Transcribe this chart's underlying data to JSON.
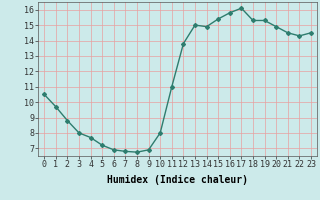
{
  "x": [
    0,
    1,
    2,
    3,
    4,
    5,
    6,
    7,
    8,
    9,
    10,
    11,
    12,
    13,
    14,
    15,
    16,
    17,
    18,
    19,
    20,
    21,
    22,
    23
  ],
  "y": [
    10.5,
    9.7,
    8.8,
    8.0,
    7.7,
    7.2,
    6.9,
    6.8,
    6.75,
    6.9,
    8.0,
    11.0,
    13.8,
    15.0,
    14.9,
    15.4,
    15.8,
    16.1,
    15.3,
    15.3,
    14.9,
    14.5,
    14.3,
    14.5
  ],
  "line_color": "#2e7d6e",
  "marker": "D",
  "marker_size": 2,
  "bg_color": "#cceaea",
  "grid_color": "#e8a0a0",
  "xlabel": "Humidex (Indice chaleur)",
  "xlim": [
    -0.5,
    23.5
  ],
  "ylim": [
    6.5,
    16.5
  ],
  "yticks": [
    7,
    8,
    9,
    10,
    11,
    12,
    13,
    14,
    15,
    16
  ],
  "xticks": [
    0,
    1,
    2,
    3,
    4,
    5,
    6,
    7,
    8,
    9,
    10,
    11,
    12,
    13,
    14,
    15,
    16,
    17,
    18,
    19,
    20,
    21,
    22,
    23
  ],
  "xlabel_fontsize": 7,
  "tick_fontsize": 6,
  "line_width": 1.0
}
